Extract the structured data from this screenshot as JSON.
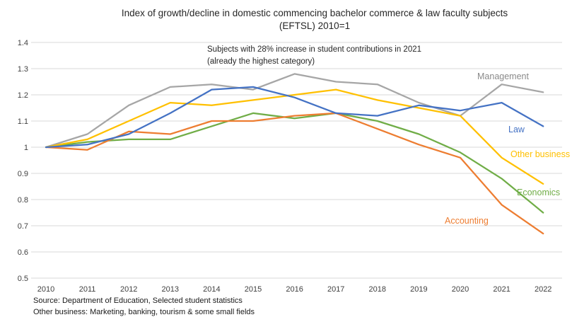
{
  "title": {
    "line1": "Index of growth/decline in domestic commencing bachelor commerce & law faculty subjects",
    "line2": "(EFTSL) 2010=1"
  },
  "annotation": {
    "line1": "Subjects with 28% increase in student contributions in 2021",
    "line2": "(already the highest category)"
  },
  "source": {
    "line1": "Source: Department of Education, Selected student statistics",
    "line2": "Other business: Marketing, banking, tourism & some small fields"
  },
  "chart_data": {
    "type": "line",
    "title": "Index of growth/decline in domestic commencing bachelor commerce & law faculty subjects (EFTSL) 2010=1",
    "categories": [
      "2010",
      "2011",
      "2012",
      "2013",
      "2014",
      "2015",
      "2016",
      "2017",
      "2018",
      "2019",
      "2020",
      "2021",
      "2022"
    ],
    "series": [
      {
        "name": "Management",
        "color": "#a6a6a6",
        "label_color": "#8a8a8a",
        "values": [
          1.0,
          1.05,
          1.16,
          1.23,
          1.24,
          1.22,
          1.28,
          1.25,
          1.24,
          1.17,
          1.12,
          1.24,
          1.21
        ]
      },
      {
        "name": "Law",
        "color": "#4472c4",
        "label_color": "#4472c4",
        "values": [
          1.0,
          1.01,
          1.05,
          1.13,
          1.22,
          1.23,
          1.19,
          1.13,
          1.12,
          1.16,
          1.14,
          1.17,
          1.08
        ]
      },
      {
        "name": "Other business",
        "color": "#ffc000",
        "label_color": "#ffc000",
        "values": [
          1.0,
          1.03,
          1.1,
          1.17,
          1.16,
          1.18,
          1.2,
          1.22,
          1.18,
          1.15,
          1.12,
          0.96,
          0.86
        ]
      },
      {
        "name": "Economics",
        "color": "#70ad47",
        "label_color": "#70ad47",
        "values": [
          1.0,
          1.02,
          1.03,
          1.03,
          1.08,
          1.13,
          1.11,
          1.13,
          1.1,
          1.05,
          0.98,
          0.88,
          0.75
        ]
      },
      {
        "name": "Accounting",
        "color": "#ed7d31",
        "label_color": "#ed7d31",
        "values": [
          1.0,
          0.99,
          1.06,
          1.05,
          1.1,
          1.1,
          1.12,
          1.13,
          1.07,
          1.01,
          0.96,
          0.78,
          0.67
        ]
      }
    ],
    "y_ticks": [
      "1.4",
      "1.3",
      "1.2",
      "1.1",
      "1",
      "0.9",
      "0.8",
      "0.7",
      "0.6",
      "0.5"
    ],
    "ylim": [
      0.5,
      1.4
    ],
    "xlabel": "",
    "ylabel": "",
    "grid": true,
    "gridline_color": "#d9d9d9",
    "legend_position": "inline-end-labels"
  }
}
